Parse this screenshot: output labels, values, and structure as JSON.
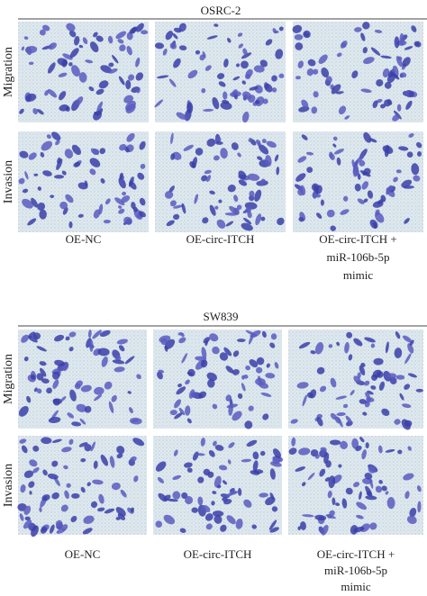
{
  "panels": [
    {
      "title": "OSRC-2",
      "row_labels": [
        "Migration",
        "Invasion"
      ],
      "column_labels": [
        [
          "OE-NC"
        ],
        [
          "OE-circ-ITCH"
        ],
        [
          "OE-circ-ITCH +",
          "miR-106b-5p",
          "mimic"
        ]
      ]
    },
    {
      "title": "SW839",
      "row_labels": [
        "Migration",
        "Invasion"
      ],
      "column_labels": [
        [
          "OE-NC"
        ],
        [
          "OE-circ-ITCH"
        ],
        [
          "OE-circ-ITCH +",
          "miR-106b-5p",
          "mimic"
        ]
      ]
    }
  ]
}
